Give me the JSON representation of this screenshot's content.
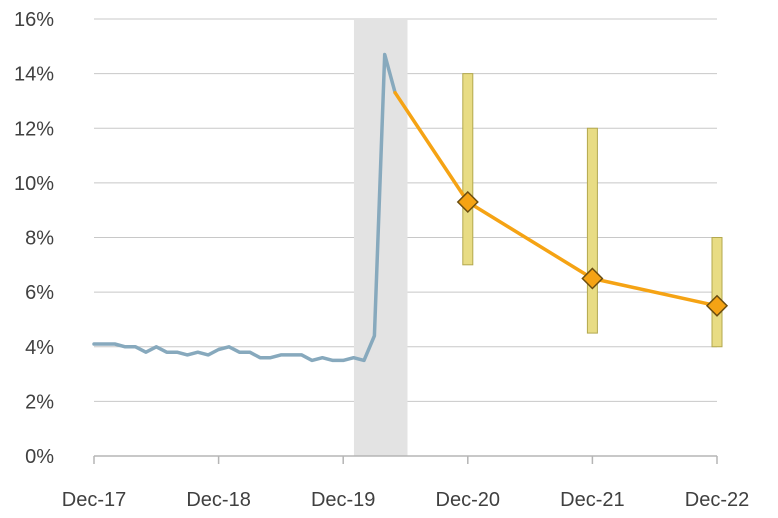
{
  "chart_data": {
    "type": "line",
    "x_ticks": [
      "Dec-17",
      "Dec-18",
      "Dec-19",
      "Dec-20",
      "Dec-21",
      "Dec-22"
    ],
    "y_ticks": [
      "0%",
      "2%",
      "4%",
      "6%",
      "8%",
      "10%",
      "12%",
      "14%",
      "16%"
    ],
    "ylim": [
      0,
      16
    ],
    "xlim": [
      "2017-12",
      "2022-12"
    ],
    "grid": true,
    "shaded_period": {
      "from": "2020-02",
      "to": "2020-06",
      "color": "#e3e3e3"
    },
    "series": [
      {
        "color": "#87a9bd",
        "points": [
          [
            "2017-12",
            4.1
          ],
          [
            "2018-01",
            4.1
          ],
          [
            "2018-02",
            4.1
          ],
          [
            "2018-03",
            4.0
          ],
          [
            "2018-04",
            4.0
          ],
          [
            "2018-05",
            3.8
          ],
          [
            "2018-06",
            4.0
          ],
          [
            "2018-07",
            3.8
          ],
          [
            "2018-08",
            3.8
          ],
          [
            "2018-09",
            3.7
          ],
          [
            "2018-10",
            3.8
          ],
          [
            "2018-11",
            3.7
          ],
          [
            "2018-12",
            3.9
          ],
          [
            "2019-01",
            4.0
          ],
          [
            "2019-02",
            3.8
          ],
          [
            "2019-03",
            3.8
          ],
          [
            "2019-04",
            3.6
          ],
          [
            "2019-05",
            3.6
          ],
          [
            "2019-06",
            3.7
          ],
          [
            "2019-07",
            3.7
          ],
          [
            "2019-08",
            3.7
          ],
          [
            "2019-09",
            3.5
          ],
          [
            "2019-10",
            3.6
          ],
          [
            "2019-11",
            3.5
          ],
          [
            "2019-12",
            3.5
          ],
          [
            "2020-01",
            3.6
          ],
          [
            "2020-02",
            3.5
          ],
          [
            "2020-03",
            4.4
          ],
          [
            "2020-04",
            14.7
          ],
          [
            "2020-05",
            13.3
          ]
        ]
      },
      {
        "color": "#f5a314",
        "points": [
          [
            "2020-05",
            13.3
          ],
          [
            "2020-12",
            9.3
          ],
          [
            "2021-12",
            6.5
          ],
          [
            "2022-12",
            5.5
          ]
        ],
        "markers": [
          [
            "2020-12",
            9.3
          ],
          [
            "2021-12",
            6.5
          ],
          [
            "2022-12",
            5.5
          ]
        ]
      }
    ],
    "ranges": [
      {
        "x": "2020-12",
        "low": 7.0,
        "high": 14.0
      },
      {
        "x": "2021-12",
        "low": 4.5,
        "high": 12.0
      },
      {
        "x": "2022-12",
        "low": 4.0,
        "high": 8.0
      }
    ],
    "range_color": "#e8dc84",
    "marker_color": "#f5a314"
  }
}
